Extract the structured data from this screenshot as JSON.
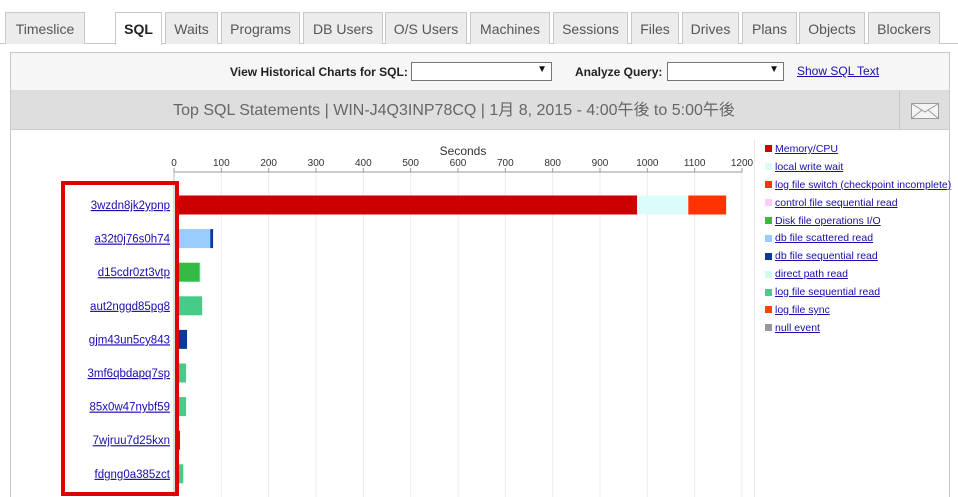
{
  "tabs": [
    {
      "label": "Timeslice",
      "active": false
    },
    {
      "label": "SQL",
      "active": true
    },
    {
      "label": "Waits",
      "active": false
    },
    {
      "label": "Programs",
      "active": false
    },
    {
      "label": "DB Users",
      "active": false
    },
    {
      "label": "O/S Users",
      "active": false
    },
    {
      "label": "Machines",
      "active": false
    },
    {
      "label": "Sessions",
      "active": false
    },
    {
      "label": "Files",
      "active": false
    },
    {
      "label": "Drives",
      "active": false
    },
    {
      "label": "Plans",
      "active": false
    },
    {
      "label": "Objects",
      "active": false
    },
    {
      "label": "Blockers",
      "active": false
    }
  ],
  "filters": {
    "historical_label": "View Historical Charts for SQL:",
    "historical_value": "",
    "analyze_label": "Analyze Query:",
    "analyze_value": "",
    "show_sql_text": "Show SQL Text"
  },
  "panel": {
    "title": "Top SQL Statements | WIN-J4Q3INP78CQ | 1月 8, 2015 - 4:00午後 to 5:00午後",
    "email_icon": "envelope-icon"
  },
  "highlight_color": "#e00000",
  "chart_data": {
    "type": "bar",
    "orientation": "horizontal",
    "stacked": true,
    "title": "",
    "xlabel": "Seconds",
    "ylabel": "",
    "xlim": [
      0,
      1200
    ],
    "xticks": [
      0,
      100,
      200,
      300,
      400,
      500,
      600,
      700,
      800,
      900,
      1000,
      1100,
      1200
    ],
    "grid": true,
    "legend_position": "right",
    "categories": [
      "3wzdn8jk2ypnp",
      "a32t0j76s0h74",
      "d15cdr0zt3vtp",
      "aut2nggd85pg8",
      "gjm43un5cy843",
      "3mf6qbdapq7sp",
      "85x0w47nybf59",
      "7wjruu7d25kxn",
      "fdgng0a385zct"
    ],
    "series": [
      {
        "name": "Memory/CPU",
        "color": "#cc0000",
        "values": [
          968,
          0,
          0,
          0,
          0,
          0,
          0,
          2,
          0
        ]
      },
      {
        "name": "local write wait",
        "color": "#dcfbfb",
        "values": [
          108,
          0,
          0,
          0,
          0,
          0,
          0,
          0,
          0
        ]
      },
      {
        "name": "log file switch (checkpoint incomplete)",
        "color": "#ff3300",
        "values": [
          80,
          0,
          0,
          0,
          0,
          0,
          0,
          0,
          0
        ]
      },
      {
        "name": "control file sequential read",
        "color": "#ffccff",
        "values": [
          0,
          0,
          0,
          0,
          0,
          0,
          0,
          0,
          0
        ]
      },
      {
        "name": "Disk file operations I/O",
        "color": "#33bb44",
        "values": [
          0,
          0,
          44,
          0,
          0,
          0,
          0,
          0,
          0
        ]
      },
      {
        "name": "db file scattered read",
        "color": "#99ccff",
        "values": [
          0,
          66,
          0,
          0,
          0,
          0,
          0,
          0,
          0
        ]
      },
      {
        "name": "db file sequential read",
        "color": "#0a3a99",
        "values": [
          0,
          6,
          0,
          0,
          17,
          0,
          0,
          0,
          0
        ]
      },
      {
        "name": "direct path read",
        "color": "#ccffee",
        "values": [
          0,
          0,
          3,
          0,
          0,
          0,
          0,
          0,
          0
        ]
      },
      {
        "name": "log file sequential read",
        "color": "#44cc88",
        "values": [
          0,
          0,
          0,
          49,
          0,
          15,
          15,
          0,
          9
        ]
      },
      {
        "name": "log file sync",
        "color": "#ff4400",
        "values": [
          0,
          0,
          0,
          0,
          0,
          0,
          0,
          0,
          0
        ]
      },
      {
        "name": "null event",
        "color": "#999999",
        "values": [
          0,
          0,
          0,
          0,
          0,
          0,
          0,
          0,
          0
        ]
      }
    ]
  }
}
